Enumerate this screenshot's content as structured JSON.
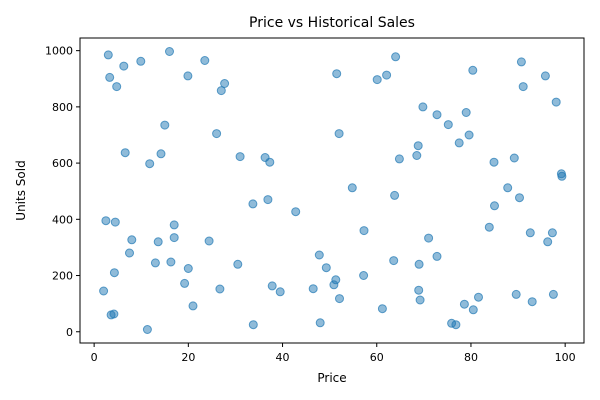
{
  "chart_data": {
    "type": "scatter",
    "title": "Price vs Historical Sales",
    "xlabel": "Price",
    "ylabel": "Units Sold",
    "xlim": [
      -3,
      104
    ],
    "ylim": [
      -40,
      1045
    ],
    "xticks": [
      0,
      20,
      40,
      60,
      80,
      100
    ],
    "yticks": [
      0,
      200,
      400,
      600,
      800,
      1000
    ],
    "grid": false,
    "legend": "none",
    "color": "#1f77b4",
    "points": [
      {
        "x": 2.0,
        "y": 145
      },
      {
        "x": 2.5,
        "y": 395
      },
      {
        "x": 3.0,
        "y": 985
      },
      {
        "x": 3.3,
        "y": 905
      },
      {
        "x": 3.6,
        "y": 60
      },
      {
        "x": 4.2,
        "y": 63
      },
      {
        "x": 4.3,
        "y": 210
      },
      {
        "x": 4.5,
        "y": 390
      },
      {
        "x": 4.8,
        "y": 872
      },
      {
        "x": 6.3,
        "y": 945
      },
      {
        "x": 6.6,
        "y": 637
      },
      {
        "x": 7.5,
        "y": 280
      },
      {
        "x": 8.0,
        "y": 327
      },
      {
        "x": 9.9,
        "y": 962
      },
      {
        "x": 11.3,
        "y": 8
      },
      {
        "x": 11.8,
        "y": 598
      },
      {
        "x": 13.0,
        "y": 245
      },
      {
        "x": 13.6,
        "y": 320
      },
      {
        "x": 14.2,
        "y": 633
      },
      {
        "x": 15.0,
        "y": 735
      },
      {
        "x": 16.0,
        "y": 997
      },
      {
        "x": 16.3,
        "y": 248
      },
      {
        "x": 17.0,
        "y": 335
      },
      {
        "x": 17.0,
        "y": 380
      },
      {
        "x": 19.2,
        "y": 172
      },
      {
        "x": 19.9,
        "y": 910
      },
      {
        "x": 20.0,
        "y": 225
      },
      {
        "x": 21.0,
        "y": 92
      },
      {
        "x": 23.5,
        "y": 965
      },
      {
        "x": 24.4,
        "y": 323
      },
      {
        "x": 26.0,
        "y": 705
      },
      {
        "x": 26.7,
        "y": 152
      },
      {
        "x": 27.0,
        "y": 858
      },
      {
        "x": 27.7,
        "y": 883
      },
      {
        "x": 30.5,
        "y": 240
      },
      {
        "x": 31.0,
        "y": 623
      },
      {
        "x": 33.7,
        "y": 455
      },
      {
        "x": 33.8,
        "y": 25
      },
      {
        "x": 36.3,
        "y": 620
      },
      {
        "x": 36.9,
        "y": 470
      },
      {
        "x": 37.3,
        "y": 603
      },
      {
        "x": 37.8,
        "y": 163
      },
      {
        "x": 39.5,
        "y": 142
      },
      {
        "x": 42.8,
        "y": 427
      },
      {
        "x": 46.5,
        "y": 153
      },
      {
        "x": 47.8,
        "y": 273
      },
      {
        "x": 48.0,
        "y": 32
      },
      {
        "x": 49.3,
        "y": 228
      },
      {
        "x": 50.9,
        "y": 167
      },
      {
        "x": 51.3,
        "y": 185
      },
      {
        "x": 51.5,
        "y": 918
      },
      {
        "x": 52.0,
        "y": 705
      },
      {
        "x": 52.1,
        "y": 118
      },
      {
        "x": 54.8,
        "y": 512
      },
      {
        "x": 57.3,
        "y": 360
      },
      {
        "x": 57.2,
        "y": 200
      },
      {
        "x": 60.1,
        "y": 897
      },
      {
        "x": 61.2,
        "y": 82
      },
      {
        "x": 62.1,
        "y": 913
      },
      {
        "x": 63.6,
        "y": 253
      },
      {
        "x": 63.8,
        "y": 485
      },
      {
        "x": 64.0,
        "y": 978
      },
      {
        "x": 64.8,
        "y": 615
      },
      {
        "x": 68.5,
        "y": 627
      },
      {
        "x": 68.8,
        "y": 662
      },
      {
        "x": 68.9,
        "y": 148
      },
      {
        "x": 69.0,
        "y": 240
      },
      {
        "x": 69.2,
        "y": 113
      },
      {
        "x": 69.8,
        "y": 800
      },
      {
        "x": 71.0,
        "y": 333
      },
      {
        "x": 72.8,
        "y": 772
      },
      {
        "x": 72.8,
        "y": 268
      },
      {
        "x": 75.2,
        "y": 737
      },
      {
        "x": 75.9,
        "y": 30
      },
      {
        "x": 76.8,
        "y": 25
      },
      {
        "x": 77.5,
        "y": 672
      },
      {
        "x": 78.6,
        "y": 98
      },
      {
        "x": 79.0,
        "y": 780
      },
      {
        "x": 79.6,
        "y": 700
      },
      {
        "x": 80.4,
        "y": 930
      },
      {
        "x": 80.5,
        "y": 78
      },
      {
        "x": 81.6,
        "y": 123
      },
      {
        "x": 83.9,
        "y": 372
      },
      {
        "x": 84.9,
        "y": 603
      },
      {
        "x": 85.0,
        "y": 448
      },
      {
        "x": 87.8,
        "y": 512
      },
      {
        "x": 89.2,
        "y": 618
      },
      {
        "x": 89.6,
        "y": 133
      },
      {
        "x": 90.3,
        "y": 477
      },
      {
        "x": 90.7,
        "y": 960
      },
      {
        "x": 91.1,
        "y": 872
      },
      {
        "x": 92.6,
        "y": 352
      },
      {
        "x": 93.0,
        "y": 107
      },
      {
        "x": 95.8,
        "y": 910
      },
      {
        "x": 96.3,
        "y": 320
      },
      {
        "x": 97.3,
        "y": 352
      },
      {
        "x": 97.5,
        "y": 133
      },
      {
        "x": 98.1,
        "y": 817
      },
      {
        "x": 99.2,
        "y": 562
      },
      {
        "x": 99.3,
        "y": 553
      }
    ]
  }
}
